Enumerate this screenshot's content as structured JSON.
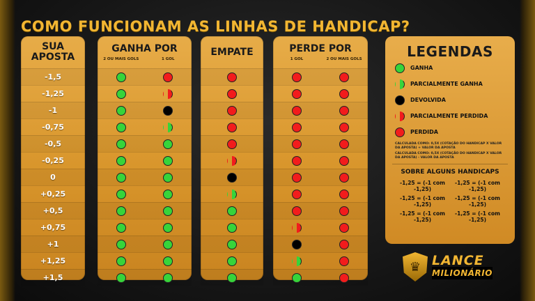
{
  "title": "COMO FUNCIONAM AS LINHAS DE HANDICAP?",
  "columns": {
    "aposta": {
      "line1": "SUA",
      "line2": "APOSTA"
    },
    "ganha": {
      "label": "GANHA POR",
      "sub1": "2 OU MAIS GOLS",
      "sub2": "1 GOL"
    },
    "empate": {
      "label": "EMPATE"
    },
    "perde": {
      "label": "PERDE POR",
      "sub1": "1 GOL",
      "sub2": "2 OU MAIS GOLS"
    }
  },
  "rows": [
    {
      "label": "-1,5",
      "cells": [
        "g",
        "r",
        "r",
        "r",
        "r"
      ]
    },
    {
      "label": "-1,25",
      "cells": [
        "g",
        "hr",
        "r",
        "r",
        "r"
      ]
    },
    {
      "label": "-1",
      "cells": [
        "g",
        "b",
        "r",
        "r",
        "r"
      ]
    },
    {
      "label": "-0,75",
      "cells": [
        "g",
        "hg",
        "r",
        "r",
        "r"
      ]
    },
    {
      "label": "-0,5",
      "cells": [
        "g",
        "g",
        "r",
        "r",
        "r"
      ]
    },
    {
      "label": "-0,25",
      "cells": [
        "g",
        "g",
        "hr",
        "r",
        "r"
      ]
    },
    {
      "label": "0",
      "cells": [
        "g",
        "g",
        "b",
        "r",
        "r"
      ]
    },
    {
      "label": "+0,25",
      "cells": [
        "g",
        "g",
        "hg",
        "r",
        "r"
      ]
    },
    {
      "label": "+0,5",
      "cells": [
        "g",
        "g",
        "g",
        "r",
        "r"
      ]
    },
    {
      "label": "+0,75",
      "cells": [
        "g",
        "g",
        "g",
        "hr",
        "r"
      ]
    },
    {
      "label": "+1",
      "cells": [
        "g",
        "g",
        "g",
        "b",
        "r"
      ]
    },
    {
      "label": "+1,25",
      "cells": [
        "g",
        "g",
        "g",
        "hg",
        "r"
      ]
    },
    {
      "label": "+1,5",
      "cells": [
        "g",
        "g",
        "g",
        "g",
        "r"
      ]
    }
  ],
  "legend": {
    "title": "LEGENDAS",
    "items": [
      {
        "type": "g",
        "text": "GANHA"
      },
      {
        "type": "hg",
        "text": "PARCIALMENTE GANHA"
      },
      {
        "type": "b",
        "text": "DEVOLVIDA"
      },
      {
        "type": "hr",
        "text": "PARCIALMENTE PERDIDA"
      },
      {
        "type": "r",
        "text": "PERDIDA"
      }
    ],
    "note1": "CALCULADA COMO: 0,5X (COTAÇÃO DO HANDICAP X VALOR DA APOSTA) + VALOR DA APOSTA",
    "note2": "CALCULADA COMO: 0,5X (COTAÇÃO DO HANDICAP X VALOR DA APOSTA) - VALOR DA APOSTA",
    "handicaps_title": "SOBRE ALGUNS HANDICAPS",
    "handicaps": [
      "-1,25 = (-1 com -1,25)",
      "-1,25 = (-1 com -1,25)",
      "-1,25 = (-1 com -1,25)",
      "-1,25 = (-1 com -1,25)",
      "-1,25 = (-1 com -1,25)",
      "-1,25 = (-1 com -1,25)"
    ]
  },
  "brand": {
    "line1": "LANCE",
    "line2": "MILIONÁRIO"
  },
  "colors": {
    "win": "#37d43a",
    "loss": "#f21c1c",
    "void": "#000000",
    "gold": "#f2b632"
  }
}
